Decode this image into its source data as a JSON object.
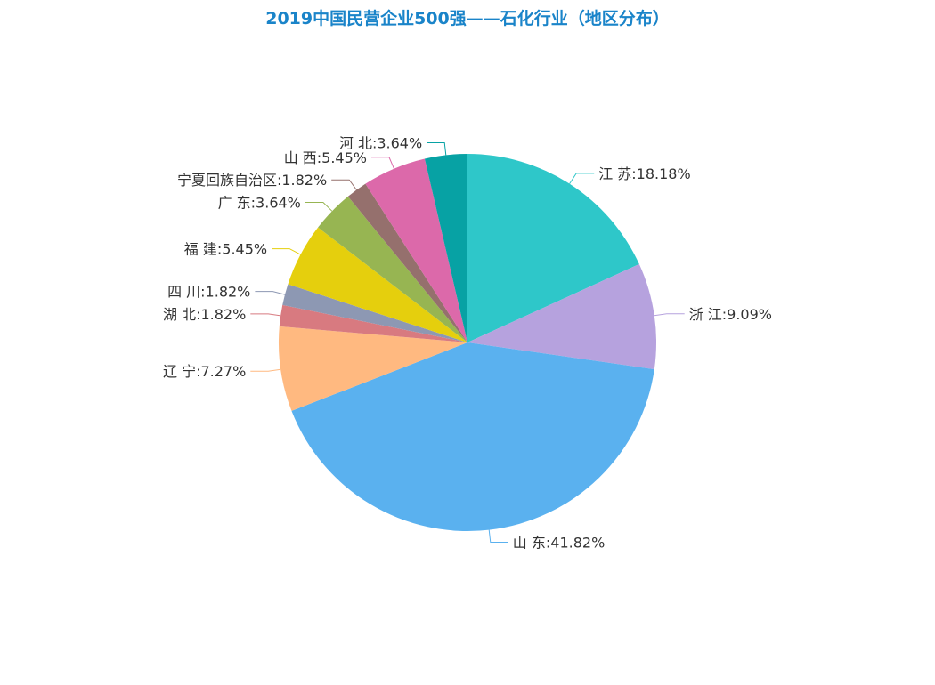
{
  "chart_data": {
    "type": "pie",
    "title": "2019中国民营企业500强——石化行业（地区分布）",
    "slices": [
      {
        "name": "江  苏",
        "value": 18.18,
        "label": "江  苏:18.18%",
        "color": "#2ec7c9"
      },
      {
        "name": "浙  江",
        "value": 9.09,
        "label": "浙  江:9.09%",
        "color": "#b6a2de"
      },
      {
        "name": "山  东",
        "value": 41.82,
        "label": "山  东:41.82%",
        "color": "#5ab1ef"
      },
      {
        "name": "辽  宁",
        "value": 7.27,
        "label": "辽  宁:7.27%",
        "color": "#ffb980"
      },
      {
        "name": "湖  北",
        "value": 1.82,
        "label": "湖  北:1.82%",
        "color": "#d87a80"
      },
      {
        "name": "四  川",
        "value": 1.82,
        "label": "四  川:1.82%",
        "color": "#8d98b3"
      },
      {
        "name": "福  建",
        "value": 5.45,
        "label": "福  建:5.45%",
        "color": "#e5cf0d"
      },
      {
        "name": "广  东",
        "value": 3.64,
        "label": "广  东:3.64%",
        "color": "#97b552"
      },
      {
        "name": "宁夏回族自治区",
        "value": 1.82,
        "label": "宁夏回族自治区:1.82%",
        "color": "#95706d"
      },
      {
        "name": "山  西",
        "value": 5.45,
        "label": "山  西:5.45%",
        "color": "#dc69aa"
      },
      {
        "name": "河  北",
        "value": 3.64,
        "label": "河  北:3.64%",
        "color": "#07a2a4"
      }
    ],
    "start_angle": "12 o'clock",
    "direction": "clockwise",
    "legend": "none",
    "labels": "outside with leader lines"
  }
}
